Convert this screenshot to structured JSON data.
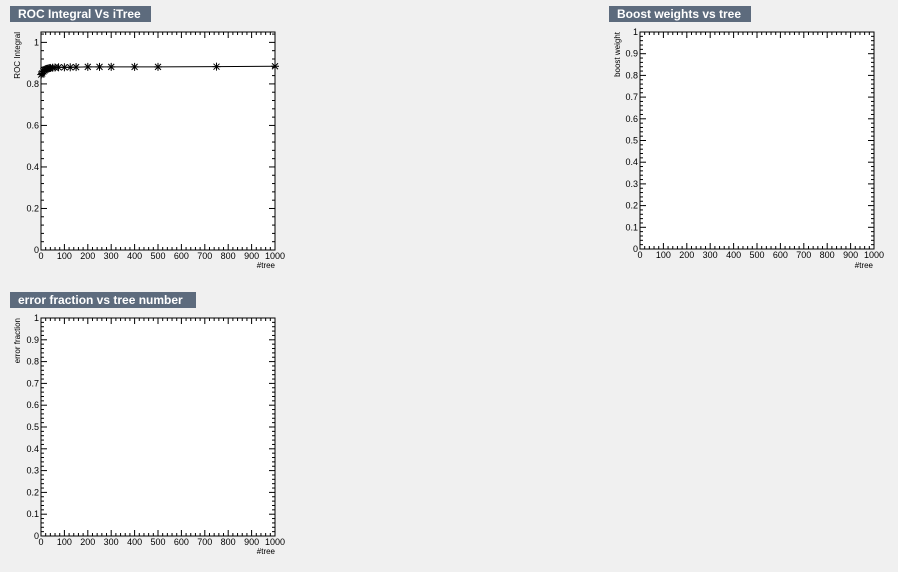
{
  "chart_data": [
    {
      "type": "line",
      "title": "ROC Integral Vs iTree",
      "xlabel": "#tree",
      "ylabel": "ROC Integral",
      "xlim": [
        0,
        1000
      ],
      "ylim": [
        0,
        1.05
      ],
      "x_ticks": [
        0,
        100,
        200,
        300,
        400,
        500,
        600,
        700,
        800,
        900,
        1000
      ],
      "x_tick_labels": [
        "0",
        "100",
        "200",
        "300",
        "400",
        "500",
        "600",
        "700",
        "800",
        "900",
        "1000"
      ],
      "y_ticks": [
        0,
        0.2,
        0.4,
        0.6,
        0.8,
        1
      ],
      "y_tick_labels": [
        "0",
        "0.2",
        "0.4",
        "0.6",
        "0.8",
        "1"
      ],
      "marker": "asterisk",
      "series": [
        {
          "x": [
            1,
            5,
            10,
            15,
            20,
            25,
            30,
            35,
            40,
            50,
            60,
            75,
            100,
            125,
            150,
            200,
            250,
            300,
            400,
            500,
            750,
            1000
          ],
          "y": [
            0.845,
            0.85,
            0.86,
            0.865,
            0.87,
            0.872,
            0.874,
            0.876,
            0.877,
            0.878,
            0.879,
            0.88,
            0.88,
            0.88,
            0.881,
            0.882,
            0.882,
            0.882,
            0.882,
            0.882,
            0.883,
            0.885
          ]
        }
      ]
    },
    {
      "type": "line",
      "title": "Boost weights vs tree",
      "xlabel": "#tree",
      "ylabel": "boost weight",
      "xlim": [
        0,
        1000
      ],
      "ylim": [
        0,
        1
      ],
      "x_ticks": [
        0,
        100,
        200,
        300,
        400,
        500,
        600,
        700,
        800,
        900,
        1000
      ],
      "x_tick_labels": [
        "0",
        "100",
        "200",
        "300",
        "400",
        "500",
        "600",
        "700",
        "800",
        "900",
        "1000"
      ],
      "y_ticks": [
        0,
        0.1,
        0.2,
        0.3,
        0.4,
        0.5,
        0.6,
        0.7,
        0.8,
        0.9,
        1
      ],
      "y_tick_labels": [
        "0",
        "0.1",
        "0.2",
        "0.3",
        "0.4",
        "0.5",
        "0.6",
        "0.7",
        "0.8",
        "0.9",
        "1"
      ],
      "series": []
    },
    {
      "type": "line",
      "title": "error fraction vs tree number",
      "xlabel": "#tree",
      "ylabel": "error fraction",
      "xlim": [
        0,
        1000
      ],
      "ylim": [
        0,
        1
      ],
      "x_ticks": [
        0,
        100,
        200,
        300,
        400,
        500,
        600,
        700,
        800,
        900,
        1000
      ],
      "x_tick_labels": [
        "0",
        "100",
        "200",
        "300",
        "400",
        "500",
        "600",
        "700",
        "800",
        "900",
        "1000"
      ],
      "y_ticks": [
        0,
        0.1,
        0.2,
        0.3,
        0.4,
        0.5,
        0.6,
        0.7,
        0.8,
        0.9,
        1
      ],
      "y_tick_labels": [
        "0",
        "0.1",
        "0.2",
        "0.3",
        "0.4",
        "0.5",
        "0.6",
        "0.7",
        "0.8",
        "0.9",
        "1"
      ],
      "series": []
    }
  ],
  "colors": {
    "background": "#f0f0f0",
    "title_box": "#5d6b7d",
    "title_text": "#ffffff",
    "plot_bg": "#ffffff",
    "axis": "#000000",
    "series": "#000000"
  }
}
